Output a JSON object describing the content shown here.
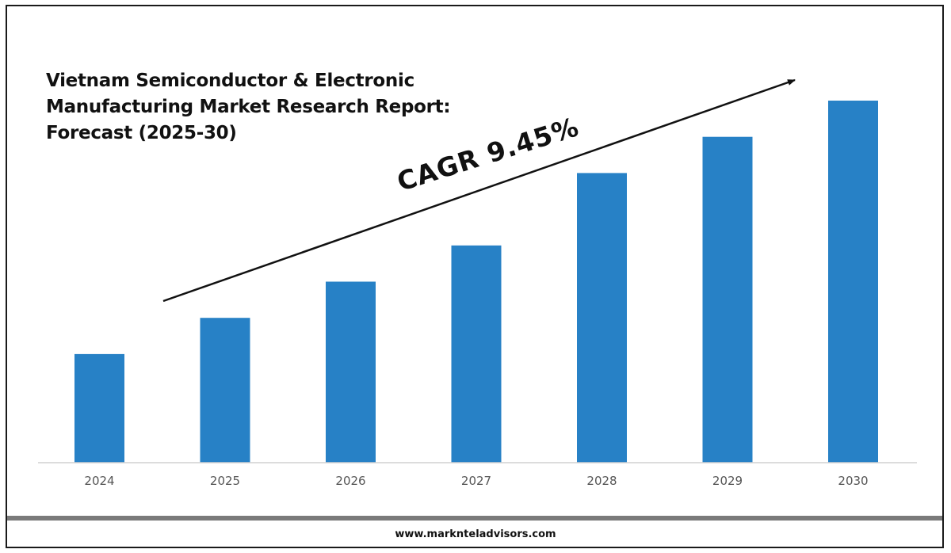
{
  "title_lines": [
    "Vietnam Semiconductor & Electronic",
    "Manufacturing Market Research Report:",
    "Forecast (2025-30)"
  ],
  "cagr_label": "CAGR 9.45%",
  "footer": {
    "website": "www.marknteladvisors.com"
  },
  "colors": {
    "bar": "#2781c6",
    "axis": "#d0d0d0",
    "arrow": "#111111",
    "footer_bar": "#7a7a7a"
  },
  "chart_data": {
    "type": "bar",
    "categories": [
      "2024",
      "2025",
      "2026",
      "2027",
      "2028",
      "2029",
      "2030"
    ],
    "values": [
      30,
      40,
      50,
      60,
      80,
      90,
      100
    ],
    "ylim": [
      0,
      100
    ],
    "grid": false,
    "legend": "none",
    "annotations": [
      "CAGR 9.45%"
    ]
  }
}
